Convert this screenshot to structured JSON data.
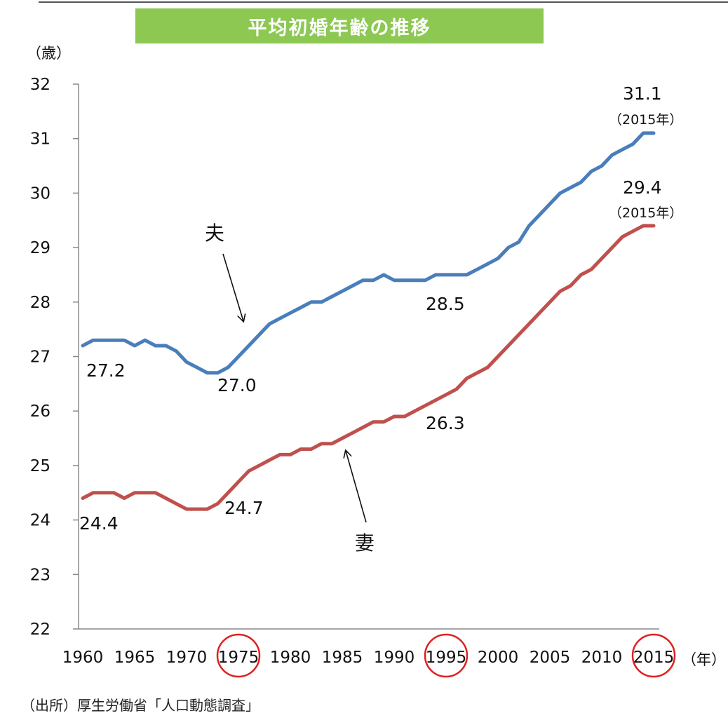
{
  "chart_data": {
    "type": "line",
    "title": "平均初婚年齢の推移",
    "ylabel": "（歳）",
    "xlabel": "（年）",
    "ylim": [
      22,
      32
    ],
    "xlim": [
      1960,
      2015
    ],
    "x_ticks": [
      "1960",
      "1965",
      "1970",
      "1975",
      "1980",
      "1985",
      "1990",
      "1995",
      "2000",
      "2005",
      "2010",
      "2015"
    ],
    "y_ticks": [
      "22",
      "23",
      "24",
      "25",
      "26",
      "27",
      "28",
      "29",
      "30",
      "31",
      "32"
    ],
    "highlighted_years": [
      "1975",
      "1995",
      "2015"
    ],
    "series": [
      {
        "name": "夫",
        "color": "#4a7ebb",
        "x": [
          1960,
          1961,
          1962,
          1963,
          1964,
          1965,
          1966,
          1967,
          1968,
          1969,
          1970,
          1971,
          1972,
          1973,
          1974,
          1975,
          1976,
          1977,
          1978,
          1979,
          1980,
          1981,
          1982,
          1983,
          1984,
          1985,
          1986,
          1987,
          1988,
          1989,
          1990,
          1991,
          1992,
          1993,
          1994,
          1995,
          1996,
          1997,
          1998,
          1999,
          2000,
          2001,
          2002,
          2003,
          2004,
          2005,
          2006,
          2007,
          2008,
          2009,
          2010,
          2011,
          2012,
          2013,
          2014,
          2015
        ],
        "values": [
          27.2,
          27.3,
          27.3,
          27.3,
          27.3,
          27.2,
          27.3,
          27.2,
          27.2,
          27.1,
          26.9,
          26.8,
          26.7,
          26.7,
          26.8,
          27.0,
          27.2,
          27.4,
          27.6,
          27.7,
          27.8,
          27.9,
          28.0,
          28.0,
          28.1,
          28.2,
          28.3,
          28.4,
          28.4,
          28.5,
          28.4,
          28.4,
          28.4,
          28.4,
          28.5,
          28.5,
          28.5,
          28.5,
          28.6,
          28.7,
          28.8,
          29.0,
          29.1,
          29.4,
          29.6,
          29.8,
          30.0,
          30.1,
          30.2,
          30.4,
          30.5,
          30.7,
          30.8,
          30.9,
          31.1,
          31.1
        ]
      },
      {
        "name": "妻",
        "color": "#c0504d",
        "x": [
          1960,
          1961,
          1962,
          1963,
          1964,
          1965,
          1966,
          1967,
          1968,
          1969,
          1970,
          1971,
          1972,
          1973,
          1974,
          1975,
          1976,
          1977,
          1978,
          1979,
          1980,
          1981,
          1982,
          1983,
          1984,
          1985,
          1986,
          1987,
          1988,
          1989,
          1990,
          1991,
          1992,
          1993,
          1994,
          1995,
          1996,
          1997,
          1998,
          1999,
          2000,
          2001,
          2002,
          2003,
          2004,
          2005,
          2006,
          2007,
          2008,
          2009,
          2010,
          2011,
          2012,
          2013,
          2014,
          2015
        ],
        "values": [
          24.4,
          24.5,
          24.5,
          24.5,
          24.4,
          24.5,
          24.5,
          24.5,
          24.4,
          24.3,
          24.2,
          24.2,
          24.2,
          24.3,
          24.5,
          24.7,
          24.9,
          25.0,
          25.1,
          25.2,
          25.2,
          25.3,
          25.3,
          25.4,
          25.4,
          25.5,
          25.6,
          25.7,
          25.8,
          25.8,
          25.9,
          25.9,
          26.0,
          26.1,
          26.2,
          26.3,
          26.4,
          26.6,
          26.7,
          26.8,
          27.0,
          27.2,
          27.4,
          27.6,
          27.8,
          28.0,
          28.2,
          28.3,
          28.5,
          28.6,
          28.8,
          29.0,
          29.2,
          29.3,
          29.4,
          29.4
        ]
      }
    ],
    "annotations": {
      "husband_1960": "27.2",
      "husband_1975": "27.0",
      "husband_1995": "28.5",
      "husband_2015": "31.1",
      "husband_2015_year": "（2015年）",
      "wife_1960": "24.4",
      "wife_1975": "24.7",
      "wife_1995": "26.3",
      "wife_2015": "29.4",
      "wife_2015_year": "（2015年）",
      "husband_label": "夫",
      "wife_label": "妻"
    }
  },
  "source": "（出所）厚生労働省「人口動態調査」"
}
